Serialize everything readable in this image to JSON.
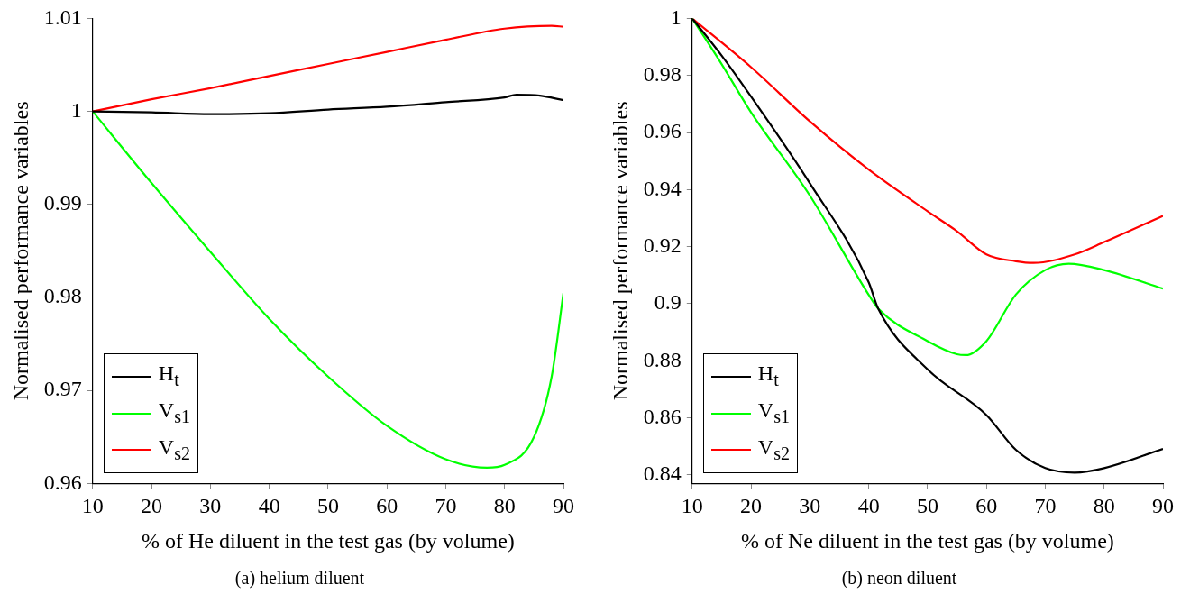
{
  "chart_data": [
    {
      "type": "line",
      "xlabel": "% of He diluent in the test gas (by volume)",
      "ylabel": "Normalised performance variables",
      "annotations": [
        "(a) helium diluent"
      ],
      "xlim": [
        10,
        90
      ],
      "ylim": [
        0.96,
        1.01
      ],
      "xticks": [
        10,
        20,
        30,
        40,
        50,
        60,
        70,
        80,
        90
      ],
      "yticks": [
        0.96,
        0.97,
        0.98,
        0.99,
        1,
        1.01
      ],
      "legend": "bottom left",
      "series": [
        {
          "name": "H$_{t}$",
          "color": "#000000",
          "x": [
            10,
            20,
            30,
            40,
            50,
            60,
            70,
            80,
            82,
            86,
            90
          ],
          "values": [
            1,
            0.9999,
            0.9997,
            0.9998,
            1.0002,
            1.0005,
            1.001,
            1.0015,
            1.0018,
            1.0017,
            1.0012
          ]
        },
        {
          "name": "V$_{s1}$",
          "color": "#00ff00",
          "x": [
            10,
            20,
            30,
            40,
            50,
            60,
            70,
            77,
            80,
            85,
            88,
            90
          ],
          "values": [
            1,
            0.9923,
            0.9849,
            0.9777,
            0.9715,
            0.9662,
            0.9626,
            0.9617,
            0.962,
            0.965,
            0.9715,
            0.9805
          ]
        },
        {
          "name": "V$_{s2}$",
          "color": "#ff0000",
          "x": [
            10,
            20,
            30,
            40,
            50,
            60,
            70,
            80,
            88,
            90
          ],
          "values": [
            1,
            1.0013,
            1.0025,
            1.0038,
            1.0051,
            1.0064,
            1.0077,
            1.0089,
            1.0092,
            1.0091
          ]
        }
      ]
    },
    {
      "type": "line",
      "xlabel": "% of Ne diluent in the test gas (by volume)",
      "ylabel": "Normalised performance variables",
      "annotations": [
        "(b) neon diluent"
      ],
      "xlim": [
        10,
        90
      ],
      "ylim": [
        0.837,
        1
      ],
      "xticks": [
        10,
        20,
        30,
        40,
        50,
        60,
        70,
        80,
        90
      ],
      "yticks": [
        0.84,
        0.86,
        0.88,
        0.9,
        0.92,
        0.94,
        0.96,
        0.98,
        1
      ],
      "legend": "bottom left",
      "series": [
        {
          "name": "H$_{t}$",
          "color": "#000000",
          "x": [
            10,
            15,
            20,
            30,
            40,
            41.6,
            50,
            60,
            65,
            70,
            75,
            80,
            90
          ],
          "values": [
            1,
            0.987,
            0.9726,
            0.9422,
            0.9075,
            0.8983,
            0.877,
            0.861,
            0.8488,
            0.8424,
            0.8408,
            0.8424,
            0.8491
          ]
        },
        {
          "name": "V$_{s1}$",
          "color": "#00ff00",
          "x": [
            10,
            15,
            20,
            30,
            40,
            41.6,
            50,
            55,
            56.5,
            60,
            65,
            70,
            74,
            80,
            90
          ],
          "values": [
            1,
            0.984,
            0.9671,
            0.9379,
            0.9031,
            0.8983,
            0.8869,
            0.8823,
            0.882,
            0.8869,
            0.9032,
            0.9118,
            0.914,
            0.9118,
            0.9053
          ]
        },
        {
          "name": "V$_{s2}$",
          "color": "#ff0000",
          "x": [
            10,
            20,
            30,
            40,
            50,
            55,
            60,
            65,
            68,
            75,
            80,
            90
          ],
          "values": [
            1,
            0.9829,
            0.9639,
            0.947,
            0.9324,
            0.9254,
            0.9173,
            0.9149,
            0.9143,
            0.9173,
            0.9216,
            0.9308
          ]
        }
      ]
    }
  ]
}
